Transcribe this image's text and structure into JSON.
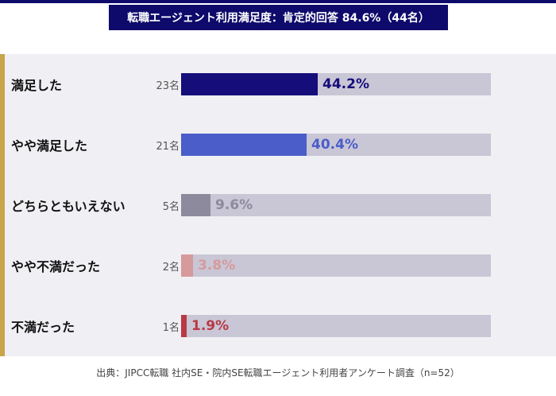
{
  "title": "転職エージェント利用満足度：肯定的回答 84.6%（44名）",
  "footer": "出典：JIPCC転職 社内SE・院内SE転職エージェント利用者アンケート調査（n=52）",
  "colors": {
    "header": "#0e0a6b",
    "accent": "#c8a44a",
    "track": "#c9c6d6",
    "row_bg": "#f0eff3"
  },
  "chart_data": {
    "type": "bar",
    "orientation": "horizontal",
    "title": "転職エージェント利用満足度：肯定的回答 84.6%（44名）",
    "categories": [
      "満足した",
      "やや満足した",
      "どちらともいえない",
      "やや不満だった",
      "不満だった"
    ],
    "counts": [
      "23名",
      "21名",
      "5名",
      "2名",
      "1名"
    ],
    "values": [
      44.2,
      40.4,
      9.6,
      3.8,
      1.9
    ],
    "value_labels": [
      "44.2%",
      "40.4%",
      "9.6%",
      "3.8%",
      "1.9%"
    ],
    "xlim": [
      0,
      100
    ],
    "bar_colors": [
      "#150e7a",
      "#4a5dc8",
      "#8d8a9e",
      "#d69a9c",
      "#b83a44"
    ],
    "label_colors": [
      "#150e7a",
      "#4a5dc8",
      "#8d8a9e",
      "#d69a9c",
      "#b83a44"
    ]
  }
}
